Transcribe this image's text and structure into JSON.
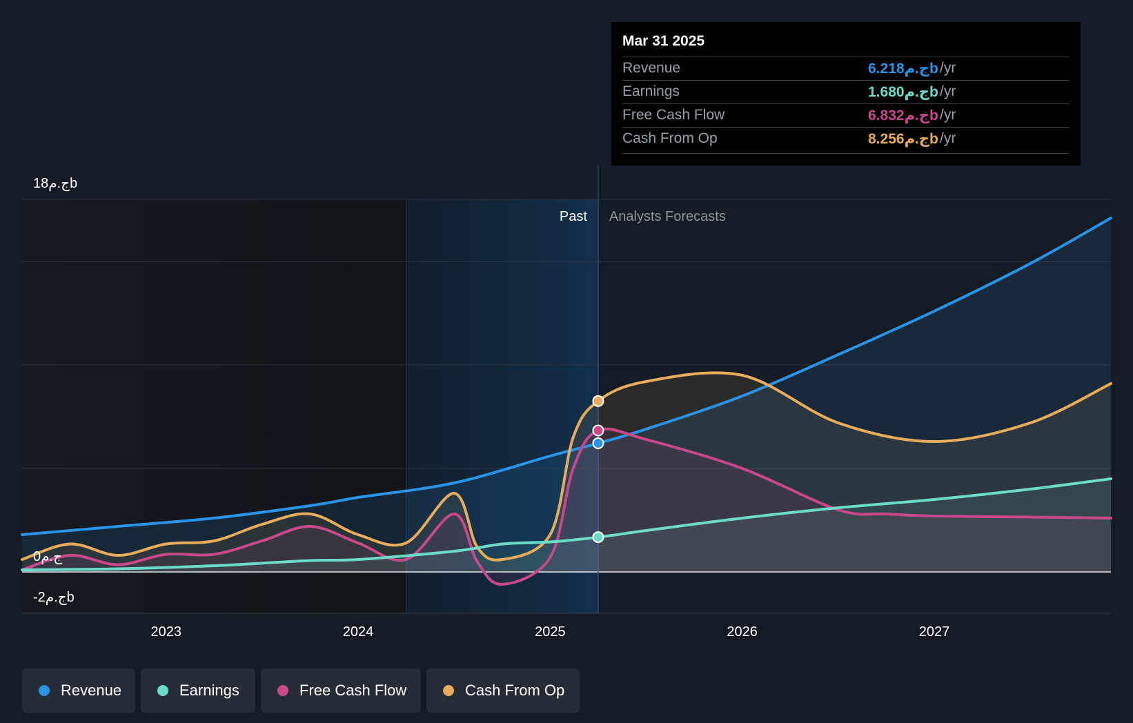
{
  "chart_data": {
    "type": "line",
    "title": "",
    "x_range": [
      2022.25,
      2027.92
    ],
    "y_range": [
      -2,
      18
    ],
    "x_ticks": [
      "2023",
      "2024",
      "2025",
      "2026",
      "2027"
    ],
    "y_labels": {
      "top": "18ج.مb",
      "zero": "0ج.م",
      "bottom": "-2ج.مb"
    },
    "divider_x": 2025.25,
    "past_label": "Past",
    "forecast_label": "Analysts Forecasts",
    "series": [
      {
        "name": "Revenue",
        "color": "#2a93e6",
        "x": [
          2022.25,
          2022.75,
          2023.25,
          2023.75,
          2024.0,
          2024.5,
          2025.0,
          2025.25,
          2025.5,
          2026.0,
          2026.5,
          2027.0,
          2027.5,
          2027.92
        ],
        "values": [
          1.8,
          2.2,
          2.6,
          3.2,
          3.6,
          4.3,
          5.6,
          6.218,
          6.9,
          8.5,
          10.5,
          12.6,
          14.9,
          17.1
        ]
      },
      {
        "name": "Earnings",
        "color": "#6cdcc9",
        "x": [
          2022.25,
          2022.75,
          2023.25,
          2023.75,
          2024.0,
          2024.5,
          2024.75,
          2025.0,
          2025.25,
          2025.5,
          2026.0,
          2026.5,
          2027.0,
          2027.5,
          2027.92
        ],
        "values": [
          0.1,
          0.15,
          0.3,
          0.55,
          0.6,
          1.0,
          1.35,
          1.45,
          1.68,
          2.0,
          2.6,
          3.1,
          3.5,
          4.0,
          4.5
        ]
      },
      {
        "name": "Free Cash Flow",
        "color": "#c9488a",
        "x": [
          2022.25,
          2022.5,
          2022.75,
          2023.0,
          2023.25,
          2023.5,
          2023.75,
          2024.0,
          2024.25,
          2024.5,
          2024.62,
          2024.75,
          2025.0,
          2025.12,
          2025.25,
          2025.5,
          2026.0,
          2026.5,
          2026.75,
          2027.0,
          2027.5,
          2027.92
        ],
        "values": [
          0.1,
          0.8,
          0.35,
          0.85,
          0.85,
          1.5,
          2.2,
          1.4,
          0.6,
          2.8,
          0.5,
          -0.6,
          0.7,
          5.0,
          6.832,
          6.4,
          5.0,
          3.0,
          2.8,
          2.7,
          2.65,
          2.6
        ]
      },
      {
        "name": "Cash From Op",
        "color": "#e8ac5c",
        "x": [
          2022.25,
          2022.5,
          2022.75,
          2023.0,
          2023.25,
          2023.5,
          2023.75,
          2024.0,
          2024.25,
          2024.5,
          2024.62,
          2024.75,
          2025.0,
          2025.12,
          2025.25,
          2025.5,
          2026.0,
          2026.5,
          2027.0,
          2027.5,
          2027.92
        ],
        "values": [
          0.6,
          1.35,
          0.8,
          1.35,
          1.5,
          2.3,
          2.8,
          1.8,
          1.4,
          3.8,
          1.2,
          0.6,
          1.8,
          6.5,
          8.256,
          9.2,
          9.5,
          7.2,
          6.3,
          7.2,
          9.1
        ]
      }
    ]
  },
  "tooltip": {
    "date": "Mar 31 2025",
    "unit": "/yr",
    "rows": [
      {
        "label": "Revenue",
        "value": "6.218ج.مb",
        "color": "#2a93e6"
      },
      {
        "label": "Earnings",
        "value": "1.680ج.مb",
        "color": "#6cdcc9"
      },
      {
        "label": "Free Cash Flow",
        "value": "6.832ج.مb",
        "color": "#c9488a"
      },
      {
        "label": "Cash From Op",
        "value": "8.256ج.مb",
        "color": "#e8ac5c"
      }
    ]
  },
  "legend": [
    {
      "label": "Revenue",
      "color": "#2a93e6"
    },
    {
      "label": "Earnings",
      "color": "#6cdcc9"
    },
    {
      "label": "Free Cash Flow",
      "color": "#c9488a"
    },
    {
      "label": "Cash From Op",
      "color": "#e8ac5c"
    }
  ]
}
